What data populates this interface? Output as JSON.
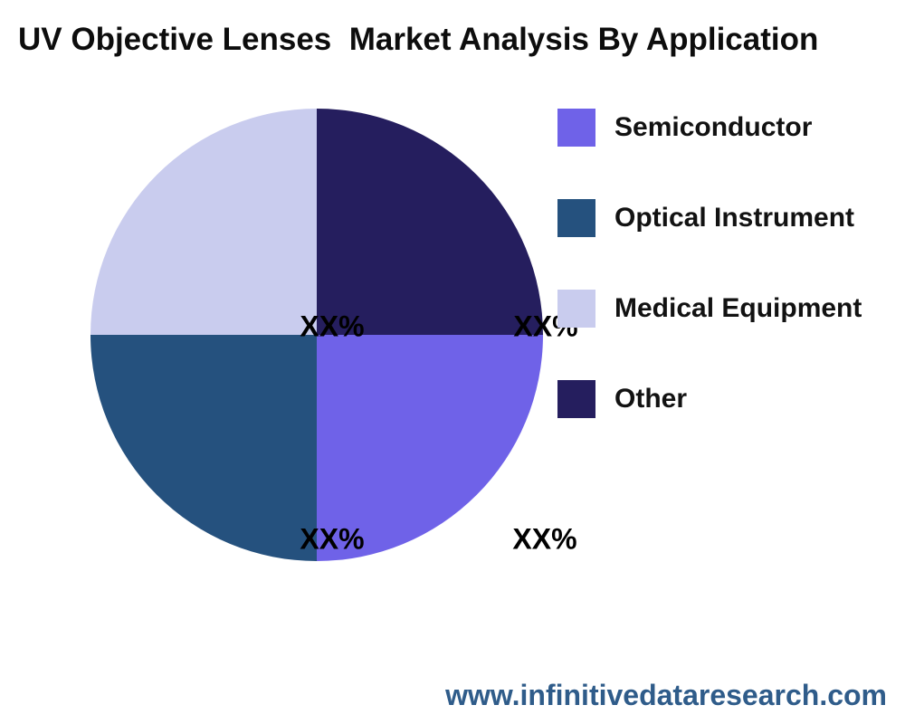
{
  "page": {
    "background_color": "#ffffff"
  },
  "title": "UV Objective Lenses  Market Analysis By Application",
  "footer": {
    "url": "www.infinitivedataresearch.com",
    "color": "#2f5c8a"
  },
  "chart_data": {
    "type": "pie",
    "title": "UV Objective Lenses  Market Analysis By Application",
    "legend_position": "right",
    "start_angle_deg": 90,
    "slices": [
      {
        "label": "Semiconductor",
        "value": 25,
        "value_label": "XX%",
        "color": "#6f62e8",
        "quadrant": "bottom-right"
      },
      {
        "label": "Optical Instrument",
        "value": 25,
        "value_label": "XX%",
        "color": "#25517e",
        "quadrant": "bottom-left"
      },
      {
        "label": "Medical Equipment",
        "value": 25,
        "value_label": "XX%",
        "color": "#c9ccee",
        "quadrant": "top-left"
      },
      {
        "label": "Other",
        "value": 25,
        "value_label": "XX%",
        "color": "#251e5e",
        "quadrant": "top-right"
      }
    ]
  }
}
